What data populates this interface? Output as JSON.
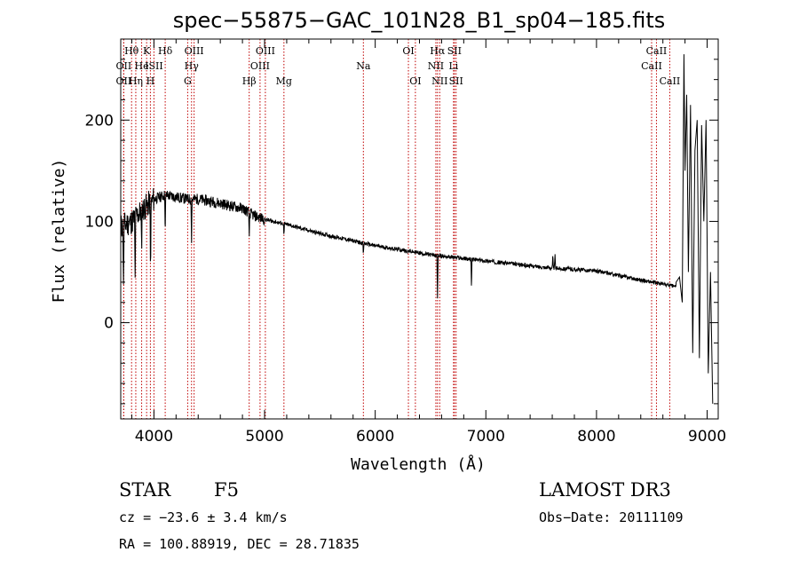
{
  "chart_data": {
    "type": "line",
    "title": "spec−55875−GAC_101N28_B1_sp04−185.fits",
    "xlabel": "Wavelength (Å)",
    "ylabel": "Flux (relative)",
    "xlim": [
      3700,
      9100
    ],
    "ylim": [
      -95,
      280
    ],
    "xticks": [
      4000,
      5000,
      6000,
      7000,
      8000,
      9000
    ],
    "yticks": [
      0,
      100,
      200
    ],
    "x_minor_step": 200,
    "y_minor_step": 20,
    "spectrum_continuum": {
      "x": [
        3700,
        3800,
        3900,
        4000,
        4100,
        4200,
        4300,
        4400,
        4500,
        4600,
        4700,
        4800,
        4900,
        5000,
        5200,
        5500,
        6000,
        6500,
        7000,
        7500,
        8000,
        8500,
        8700
      ],
      "y": [
        95,
        100,
        112,
        122,
        126,
        124,
        122,
        122,
        120,
        118,
        115,
        113,
        106,
        102,
        97,
        88,
        76,
        67,
        61,
        55,
        51,
        40,
        36
      ]
    },
    "spectrum_features": [
      {
        "x": 3725,
        "y": 30
      },
      {
        "x": 3830,
        "y": 40
      },
      {
        "x": 3888,
        "y": 68
      },
      {
        "x": 3970,
        "y": 40
      },
      {
        "x": 4102,
        "y": 86
      },
      {
        "x": 4340,
        "y": 80
      },
      {
        "x": 4861,
        "y": 80
      },
      {
        "x": 5175,
        "y": 85
      },
      {
        "x": 5893,
        "y": 65
      },
      {
        "x": 6563,
        "y": 22
      },
      {
        "x": 6870,
        "y": 30
      },
      {
        "x": 7605,
        "y": 67
      },
      {
        "x": 7625,
        "y": 67
      }
    ],
    "spectrum_edge": {
      "x": [
        8720,
        8750,
        8775,
        8790,
        8800,
        8815,
        8830,
        8850,
        8870,
        8890,
        8910,
        8930,
        8950,
        8970,
        8990,
        9010,
        9030,
        9050
      ],
      "y": [
        40,
        45,
        20,
        265,
        150,
        225,
        50,
        215,
        -30,
        170,
        200,
        -35,
        195,
        100,
        200,
        -50,
        50,
        -80
      ]
    },
    "spectral_lines": [
      {
        "label": "Hθ",
        "x": 3798,
        "row": 1
      },
      {
        "label": "OII",
        "x": 3727,
        "row": 2
      },
      {
        "label": "OII",
        "x": 3727,
        "row": 3
      },
      {
        "label": "Hη",
        "x": 3836,
        "row": 3
      },
      {
        "label": "He",
        "x": 3889,
        "row": 2
      },
      {
        "label": "K",
        "x": 3934,
        "row": 1
      },
      {
        "label": "H",
        "x": 3968,
        "row": 3
      },
      {
        "label": "ISII",
        "x": 4000,
        "row": 2
      },
      {
        "label": "Hδ",
        "x": 4102,
        "row": 1
      },
      {
        "label": "OIII",
        "x": 4363,
        "row": 1
      },
      {
        "label": "Hγ",
        "x": 4340,
        "row": 2
      },
      {
        "label": "G",
        "x": 4305,
        "row": 3
      },
      {
        "label": "Hβ",
        "x": 4861,
        "row": 3
      },
      {
        "label": "OIII",
        "x": 5007,
        "row": 1
      },
      {
        "label": "OIII",
        "x": 4959,
        "row": 2
      },
      {
        "label": "Mg",
        "x": 5175,
        "row": 3
      },
      {
        "label": "Na",
        "x": 5893,
        "row": 2
      },
      {
        "label": "OI",
        "x": 6300,
        "row": 1
      },
      {
        "label": "OI",
        "x": 6363,
        "row": 3
      },
      {
        "label": "Hα",
        "x": 6563,
        "row": 1
      },
      {
        "label": "NII",
        "x": 6548,
        "row": 2
      },
      {
        "label": "NII",
        "x": 6583,
        "row": 3
      },
      {
        "label": "SII",
        "x": 6716,
        "row": 1
      },
      {
        "label": "Li",
        "x": 6708,
        "row": 2
      },
      {
        "label": "SII",
        "x": 6731,
        "row": 3
      },
      {
        "label": "CaII",
        "x": 8542,
        "row": 1
      },
      {
        "label": "CaII",
        "x": 8498,
        "row": 2
      },
      {
        "label": "CaII",
        "x": 8662,
        "row": 3
      }
    ]
  },
  "info": {
    "object_type": "STAR",
    "subclass": "F5",
    "survey": "LAMOST DR3",
    "velocity": "cz = −23.6 ± 3.4 km/s",
    "obs_date": "Obs−Date: 20111109",
    "coordinates": "RA = 100.88919, DEC =  28.71835"
  }
}
